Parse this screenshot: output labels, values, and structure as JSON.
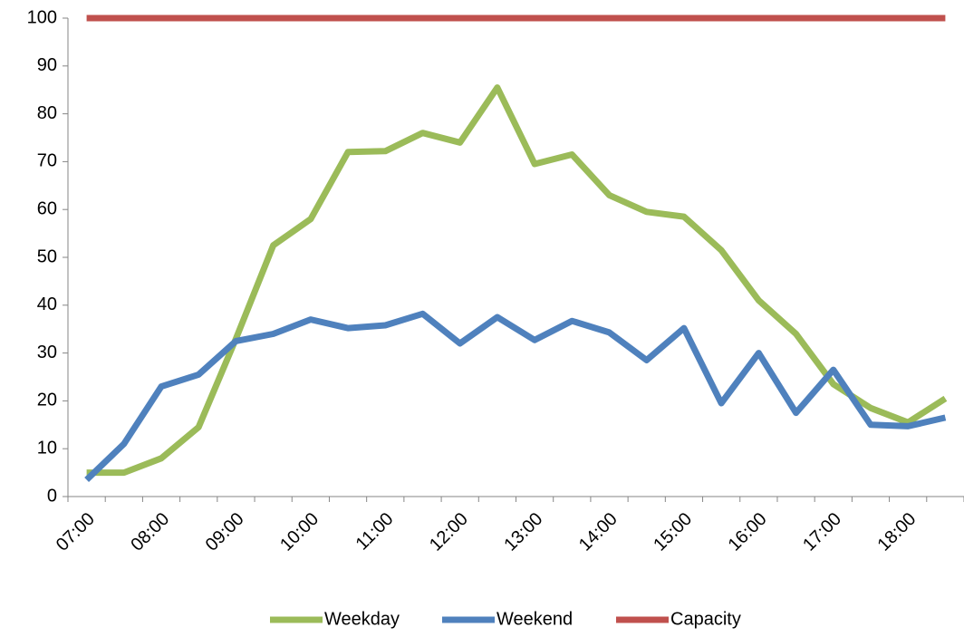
{
  "chart_data": {
    "type": "line",
    "categories": [
      "07:00",
      null,
      "08:00",
      null,
      "09:00",
      null,
      "10:00",
      null,
      "11:00",
      null,
      "12:00",
      null,
      "13:00",
      null,
      "14:00",
      null,
      "15:00",
      null,
      "16:00",
      null,
      "17:00",
      null,
      "18:00",
      null
    ],
    "series": [
      {
        "name": "Weekday",
        "color": "#9bbb59",
        "values": [
          5,
          5,
          8,
          14.5,
          33,
          52.5,
          58,
          72,
          72.2,
          76,
          74,
          85.5,
          69.5,
          71.5,
          63,
          59.5,
          58.5,
          51.5,
          41,
          34,
          23.5,
          18.5,
          15.5,
          20.5
        ]
      },
      {
        "name": "Weekend",
        "color": "#4f81bd",
        "values": [
          3.5,
          11,
          23,
          25.5,
          32.5,
          34,
          37,
          35.2,
          35.8,
          38.2,
          32,
          37.5,
          32.7,
          36.7,
          34.3,
          28.5,
          35.2,
          19.5,
          30,
          17.5,
          26.5,
          15,
          14.7,
          16.5
        ]
      },
      {
        "name": "Capacity",
        "color": "#c0504d",
        "values": [
          100,
          100,
          100,
          100,
          100,
          100,
          100,
          100,
          100,
          100,
          100,
          100,
          100,
          100,
          100,
          100,
          100,
          100,
          100,
          100,
          100,
          100,
          100,
          100
        ]
      }
    ],
    "ylim": [
      0,
      100
    ],
    "yticks": [
      0,
      10,
      20,
      30,
      40,
      50,
      60,
      70,
      80,
      90,
      100
    ],
    "grid": false,
    "legend": "bottom"
  }
}
